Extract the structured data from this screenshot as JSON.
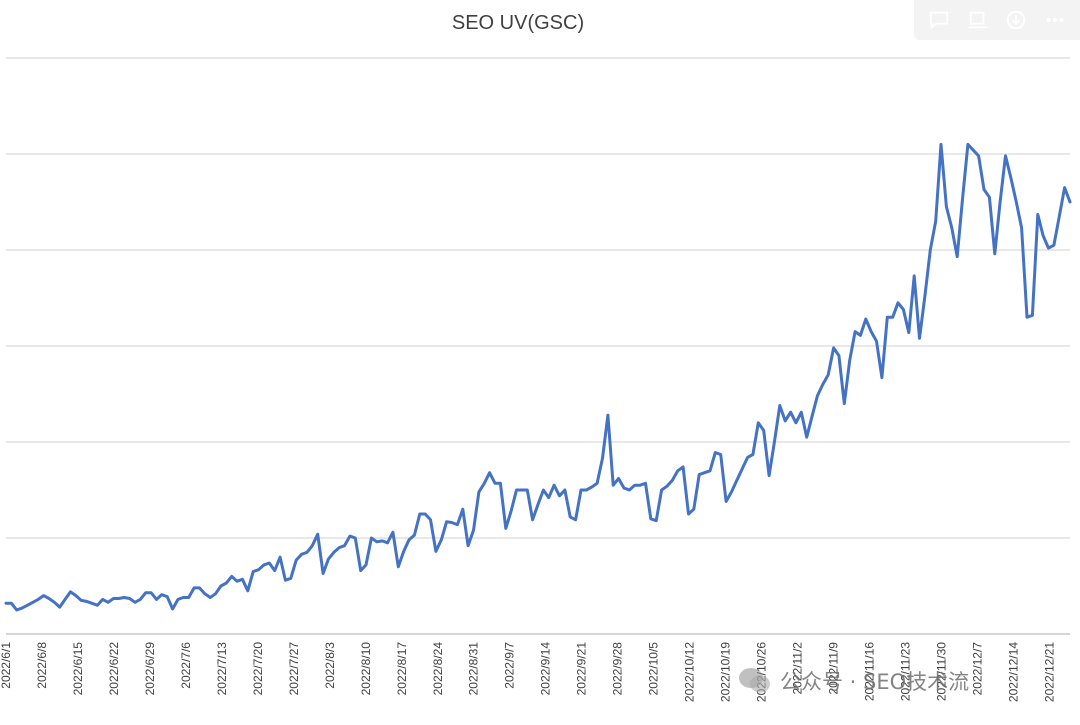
{
  "toolbar": {
    "icons": [
      "comment-icon",
      "monitor-icon",
      "download-icon",
      "more-icon"
    ]
  },
  "watermark": {
    "text": "公众号 · SEO技术流"
  },
  "colors": {
    "series": "#4472c4",
    "grid": "#d9d9d9",
    "title": "#404040"
  },
  "chart_data": {
    "type": "line",
    "title": "SEO UV(GSC)",
    "xlabel": "",
    "ylabel": "",
    "y_tick_labels_shown": false,
    "gridlines": 6,
    "grid": true,
    "legend": "none",
    "ylim": [
      0,
      6
    ],
    "x_tick_labels": [
      "2022/6/1",
      "2022/6/8",
      "2022/6/15",
      "2022/6/22",
      "2022/6/29",
      "2022/7/6",
      "2022/7/13",
      "2022/7/20",
      "2022/7/27",
      "2022/8/3",
      "2022/8/10",
      "2022/8/17",
      "2022/8/24",
      "2022/8/31",
      "2022/9/7",
      "2022/9/14",
      "2022/9/21",
      "2022/9/28",
      "2022/10/5",
      "2022/10/12",
      "2022/10/19",
      "2022/10/26",
      "2022/11/2",
      "2022/11/9",
      "2022/11/16",
      "2022/11/23",
      "2022/11/30",
      "2022/12/7",
      "2022/12/14",
      "2022/12/21"
    ],
    "x_start": "2022/6/1",
    "x_end": "2022/12/25",
    "series": [
      {
        "values": [
          0.32,
          0.32,
          0.25,
          0.27,
          0.3,
          0.33,
          0.36,
          0.4,
          0.37,
          0.33,
          0.28,
          0.36,
          0.44,
          0.4,
          0.35,
          0.34,
          0.32,
          0.3,
          0.36,
          0.33,
          0.37,
          0.37,
          0.38,
          0.37,
          0.33,
          0.36,
          0.43,
          0.43,
          0.36,
          0.41,
          0.39,
          0.26,
          0.36,
          0.38,
          0.38,
          0.48,
          0.48,
          0.42,
          0.38,
          0.42,
          0.5,
          0.53,
          0.6,
          0.55,
          0.57,
          0.45,
          0.65,
          0.67,
          0.72,
          0.74,
          0.66,
          0.8,
          0.56,
          0.58,
          0.77,
          0.83,
          0.85,
          0.92,
          1.04,
          0.63,
          0.78,
          0.85,
          0.9,
          0.92,
          1.02,
          1.0,
          0.66,
          0.72,
          1.0,
          0.96,
          0.97,
          0.95,
          1.06,
          0.7,
          0.86,
          0.98,
          1.03,
          1.25,
          1.25,
          1.19,
          0.86,
          0.98,
          1.17,
          1.16,
          1.14,
          1.3,
          0.92,
          1.08,
          1.48,
          1.57,
          1.68,
          1.57,
          1.57,
          1.1,
          1.28,
          1.5,
          1.5,
          1.5,
          1.19,
          1.35,
          1.5,
          1.42,
          1.55,
          1.44,
          1.5,
          1.22,
          1.19,
          1.5,
          1.5,
          1.53,
          1.57,
          1.83,
          2.28,
          1.55,
          1.62,
          1.52,
          1.5,
          1.55,
          1.55,
          1.57,
          1.2,
          1.18,
          1.5,
          1.54,
          1.6,
          1.7,
          1.74,
          1.25,
          1.3,
          1.66,
          1.68,
          1.7,
          1.89,
          1.87,
          1.38,
          1.48,
          1.6,
          1.72,
          1.84,
          1.87,
          2.2,
          2.12,
          1.65,
          2.0,
          2.38,
          2.22,
          2.31,
          2.2,
          2.31,
          2.05,
          2.27,
          2.48,
          2.6,
          2.7,
          2.98,
          2.9,
          2.4,
          2.85,
          3.15,
          3.11,
          3.28,
          3.15,
          3.05,
          2.67,
          3.3,
          3.3,
          3.45,
          3.38,
          3.14,
          3.73,
          3.08,
          3.52,
          4.0,
          4.3,
          5.1,
          4.45,
          4.23,
          3.93,
          4.53,
          5.1,
          5.04,
          4.98,
          4.63,
          4.55,
          3.96,
          4.5,
          4.98,
          4.75,
          4.5,
          4.23,
          3.3,
          3.32,
          4.37,
          4.15,
          4.02,
          4.05,
          4.35,
          4.65,
          4.5
        ]
      }
    ]
  }
}
